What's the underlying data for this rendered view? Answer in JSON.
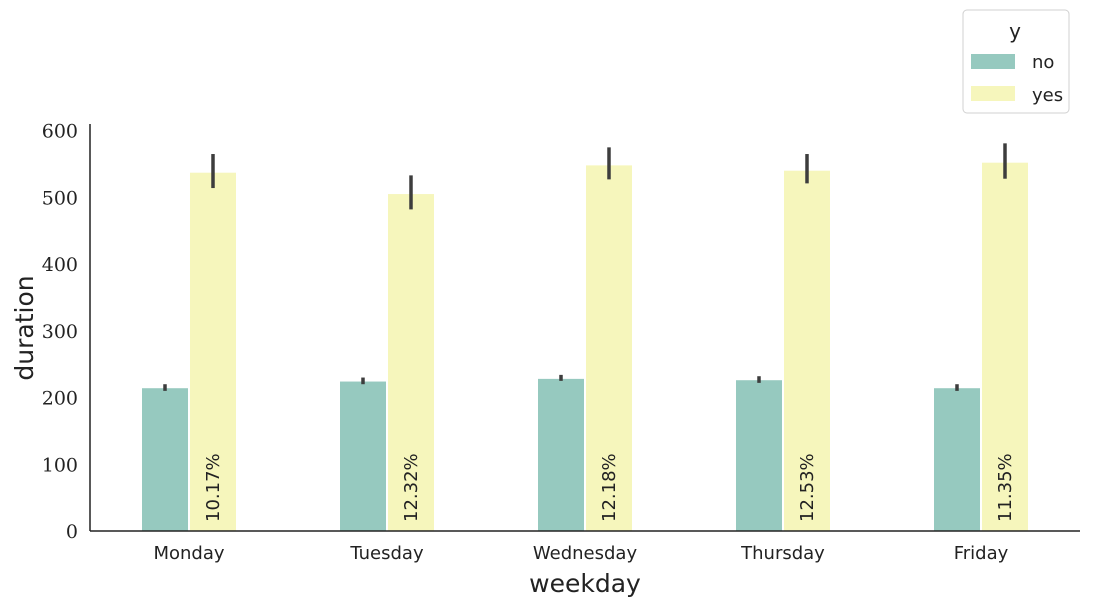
{
  "chart_data": {
    "type": "bar",
    "categories": [
      "Monday",
      "Tuesday",
      "Wednesday",
      "Thursday",
      "Friday"
    ],
    "series": [
      {
        "name": "no",
        "color": "#96c9bf",
        "values": [
          214,
          224,
          228,
          226,
          214
        ],
        "err_low": [
          210,
          220,
          225,
          222,
          210
        ],
        "err_high": [
          220,
          230,
          234,
          232,
          220
        ]
      },
      {
        "name": "yes",
        "color": "#f6f6bc",
        "values": [
          537,
          505,
          548,
          540,
          552
        ],
        "err_low": [
          514,
          482,
          527,
          521,
          528
        ],
        "err_high": [
          565,
          533,
          575,
          565,
          581
        ]
      }
    ],
    "bar_labels": [
      "10.17%",
      "12.32%",
      "12.18%",
      "12.53%",
      "11.35%"
    ],
    "yticks": [
      0,
      100,
      200,
      300,
      400,
      500,
      600
    ],
    "ylim": [
      0,
      610
    ],
    "xlabel": "weekday",
    "ylabel": "duration",
    "legend": {
      "title": "y",
      "placement": "top-right",
      "entries": [
        "no",
        "yes"
      ]
    },
    "grid": false
  }
}
